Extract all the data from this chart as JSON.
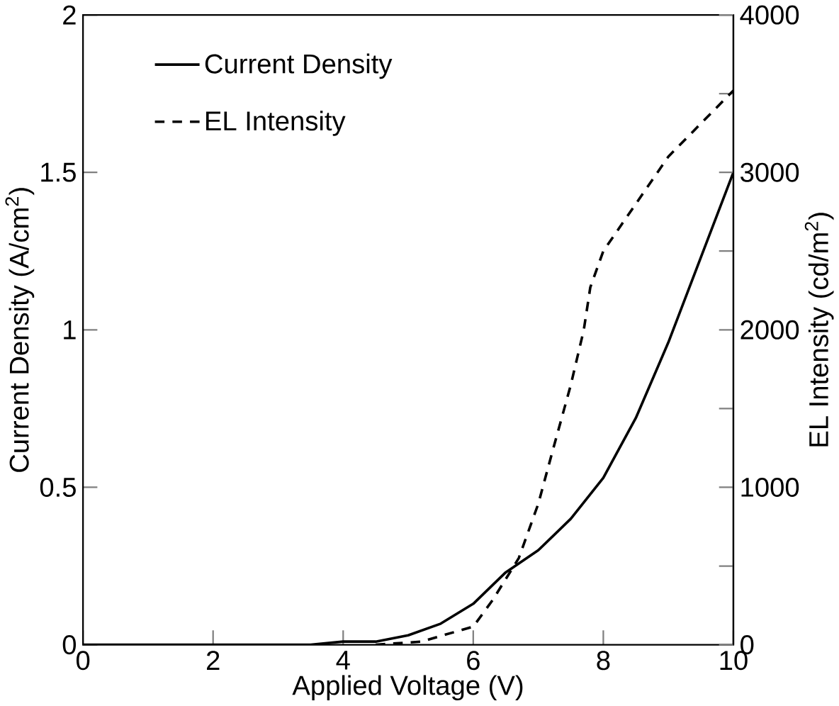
{
  "chart_data": {
    "type": "line",
    "xlabel": "Applied Voltage (V)",
    "ylabel": "Current Density (A/cm$^{2}$)",
    "y2label": "EL Intensity (cd/m$^{2}$)",
    "xlim": [
      0,
      10
    ],
    "xticks": [
      0,
      2,
      4,
      6,
      8,
      10
    ],
    "ylim": [
      0,
      2
    ],
    "yticks": [
      0,
      0.5,
      1,
      1.5,
      2
    ],
    "y2lim": [
      0,
      4000
    ],
    "y2ticks": [
      0,
      {
        "value": 500,
        "label": null
      },
      1000,
      {
        "value": 1500,
        "label": null
      },
      2000,
      {
        "value": 2500,
        "label": null
      },
      3000,
      {
        "value": 3500,
        "label": null
      },
      4000
    ],
    "legend": "top left",
    "grid": false,
    "series": [
      {
        "name": "Current Density",
        "color": "#000000",
        "line_style": "solid",
        "x": [
          0,
          3.5,
          4,
          4.5,
          5,
          5.5,
          6,
          6.5,
          7,
          7.5,
          8,
          8.5,
          9,
          9.5,
          10
        ],
        "values": [
          0,
          0,
          0.01,
          0.01,
          0.03,
          0.067,
          0.13,
          0.23,
          0.3,
          0.4,
          0.53,
          0.72,
          0.96,
          1.23,
          1.5
        ]
      },
      {
        "name": "EL Intensity",
        "color": "#000000",
        "line_style": "dashed",
        "axis": "y2",
        "x": [
          4.5,
          5.2,
          6,
          6.3,
          6.7,
          7,
          7.2,
          7.5,
          7.7,
          7.8,
          8,
          8.5,
          9,
          9.5,
          10
        ],
        "values": [
          0,
          20,
          115,
          285,
          550,
          895,
          1200,
          1650,
          2000,
          2270,
          2500,
          2800,
          3100,
          3310,
          3520
        ]
      }
    ]
  }
}
